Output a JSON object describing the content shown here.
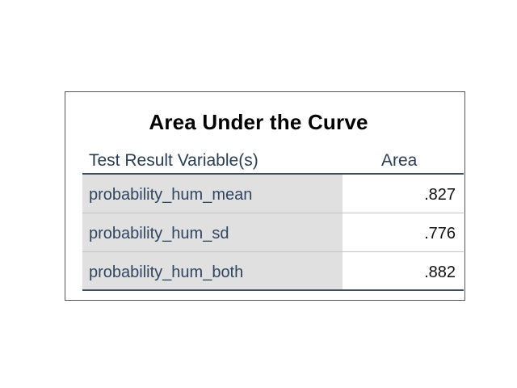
{
  "table": {
    "title": "Area Under the Curve",
    "columns": {
      "variable": "Test Result Variable(s)",
      "area": "Area"
    },
    "rows": [
      {
        "variable": "probability_hum_mean",
        "area": ".827"
      },
      {
        "variable": "probability_hum_sd",
        "area": ".776"
      },
      {
        "variable": "probability_hum_both",
        "area": ".882"
      }
    ]
  }
}
